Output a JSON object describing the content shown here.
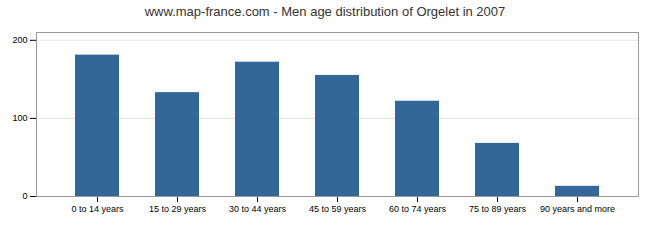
{
  "chart_data": {
    "type": "bar",
    "title": "www.map-france.com - Men age distribution of Orgelet in 2007",
    "categories": [
      "0 to 14 years",
      "15 to 29 years",
      "30 to 44 years",
      "45 to 59 years",
      "60 to 74 years",
      "75 to 89 years",
      "90 years and more"
    ],
    "values": [
      181,
      133,
      172,
      155,
      122,
      68,
      13
    ],
    "color": "#336699",
    "ylim": [
      0,
      210
    ],
    "yticks": [
      0,
      100,
      200
    ],
    "grid": true
  }
}
